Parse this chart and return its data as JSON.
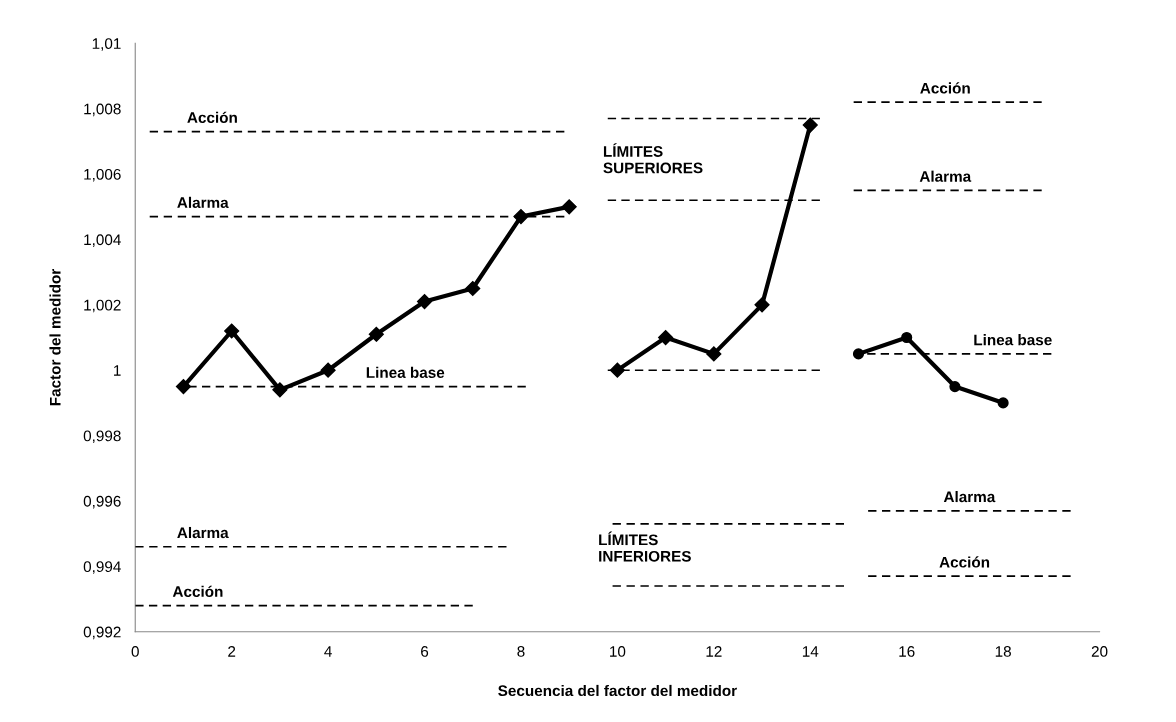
{
  "chart_data": {
    "type": "line",
    "xlabel": "Secuencia del factor del medidor",
    "ylabel": "Factor del medidor",
    "xlim": [
      0,
      20
    ],
    "xticks": [
      0,
      2,
      4,
      6,
      8,
      10,
      12,
      14,
      16,
      18,
      20
    ],
    "ylim": [
      0.992,
      1.01
    ],
    "yticks": [
      {
        "value": 0.992,
        "label": "0,992"
      },
      {
        "value": 0.994,
        "label": "0,994"
      },
      {
        "value": 0.996,
        "label": "0,996"
      },
      {
        "value": 0.998,
        "label": "0,998"
      },
      {
        "value": 1,
        "label": "1"
      },
      {
        "value": 1.002,
        "label": "1,002"
      },
      {
        "value": 1.004,
        "label": "1,004"
      },
      {
        "value": 1.006,
        "label": "1,006"
      },
      {
        "value": 1.008,
        "label": "1,008"
      },
      {
        "value": 1.01,
        "label": "1,01"
      }
    ],
    "grid": false,
    "legend": false,
    "series": [
      {
        "color": "#000000",
        "marker": "diamond",
        "line_style": "solid",
        "x": [
          1,
          2,
          3,
          4,
          5,
          6,
          7,
          8,
          9
        ],
        "values": [
          0.9995,
          1.0012,
          0.9994,
          1.0,
          1.0011,
          1.0021,
          1.0025,
          1.0047,
          1.005
        ]
      },
      {
        "color": "#000000",
        "marker": "diamond",
        "line_style": "solid",
        "x": [
          10,
          11,
          12,
          13,
          14
        ],
        "values": [
          1.0,
          1.001,
          1.0005,
          1.002,
          1.0075
        ]
      },
      {
        "color": "#000000",
        "marker": "circle",
        "line_style": "solid",
        "x": [
          15,
          16,
          17,
          18
        ],
        "values": [
          1.0005,
          1.001,
          0.9995,
          0.999
        ]
      },
      {
        "color": "#000000",
        "marker": "none",
        "line_style": "dashed",
        "x": [
          0.3,
          8.9
        ],
        "values": [
          1.0073,
          1.0073
        ]
      },
      {
        "color": "#000000",
        "marker": "none",
        "line_style": "dashed",
        "x": [
          0.3,
          8.9
        ],
        "values": [
          1.0047,
          1.0047
        ]
      },
      {
        "color": "#000000",
        "marker": "none",
        "line_style": "dashed",
        "x": [
          1.1,
          8.1
        ],
        "values": [
          0.9995,
          0.9995
        ]
      },
      {
        "color": "#000000",
        "marker": "none",
        "line_style": "dashed",
        "x": [
          0,
          7.7
        ],
        "values": [
          0.9946,
          0.9946
        ]
      },
      {
        "color": "#000000",
        "marker": "none",
        "line_style": "dashed",
        "x": [
          0,
          7.0
        ],
        "values": [
          0.9928,
          0.9928
        ]
      },
      {
        "color": "#000000",
        "marker": "none",
        "line_style": "dashed",
        "x": [
          9.8,
          14.2
        ],
        "values": [
          1.0077,
          1.0077
        ]
      },
      {
        "color": "#000000",
        "marker": "none",
        "line_style": "dashed",
        "x": [
          9.8,
          14.2
        ],
        "values": [
          1.0052,
          1.0052
        ]
      },
      {
        "color": "#000000",
        "marker": "none",
        "line_style": "dashed",
        "x": [
          9.8,
          14.2
        ],
        "values": [
          1.0,
          1.0
        ]
      },
      {
        "color": "#000000",
        "marker": "none",
        "line_style": "dashed",
        "x": [
          9.9,
          14.7
        ],
        "values": [
          0.9953,
          0.9953
        ]
      },
      {
        "color": "#000000",
        "marker": "none",
        "line_style": "dashed",
        "x": [
          9.9,
          14.7
        ],
        "values": [
          0.9934,
          0.9934
        ]
      },
      {
        "color": "#000000",
        "marker": "none",
        "line_style": "dashed",
        "x": [
          14.9,
          18.8
        ],
        "values": [
          1.0082,
          1.0082
        ]
      },
      {
        "color": "#000000",
        "marker": "none",
        "line_style": "dashed",
        "x": [
          14.9,
          18.8
        ],
        "values": [
          1.0055,
          1.0055
        ]
      },
      {
        "color": "#000000",
        "marker": "none",
        "line_style": "dashed",
        "x": [
          14.9,
          19.0
        ],
        "values": [
          1.0005,
          1.0005
        ]
      },
      {
        "color": "#000000",
        "marker": "none",
        "line_style": "dashed",
        "x": [
          15.2,
          19.4
        ],
        "values": [
          0.9957,
          0.9957
        ]
      },
      {
        "color": "#000000",
        "marker": "none",
        "line_style": "dashed",
        "x": [
          15.2,
          19.4
        ],
        "values": [
          0.9937,
          0.9937
        ]
      }
    ],
    "annotations": [
      {
        "text": "Acción",
        "x": 1.6,
        "y": 1.0073
      },
      {
        "text": "Alarma",
        "x": 1.4,
        "y": 1.0047
      },
      {
        "text": "Linea base",
        "x": 5.6,
        "y": 0.9995
      },
      {
        "text": "Alarma",
        "x": 1.4,
        "y": 0.9946
      },
      {
        "text": "Acción",
        "x": 1.3,
        "y": 0.9928
      },
      "LÍMITES\nSUPERIORES",
      "LÍMITES\nINFERIORES",
      {
        "text": "Acción",
        "x": 16.8,
        "y": 1.0082
      },
      {
        "text": "Alarma",
        "x": 16.8,
        "y": 1.0055
      },
      {
        "text": "Linea base",
        "x": 18.2,
        "y": 1.0005
      },
      {
        "text": "Alarma",
        "x": 17.3,
        "y": 0.9957
      },
      {
        "text": "Acción",
        "x": 17.2,
        "y": 0.9937
      }
    ]
  }
}
